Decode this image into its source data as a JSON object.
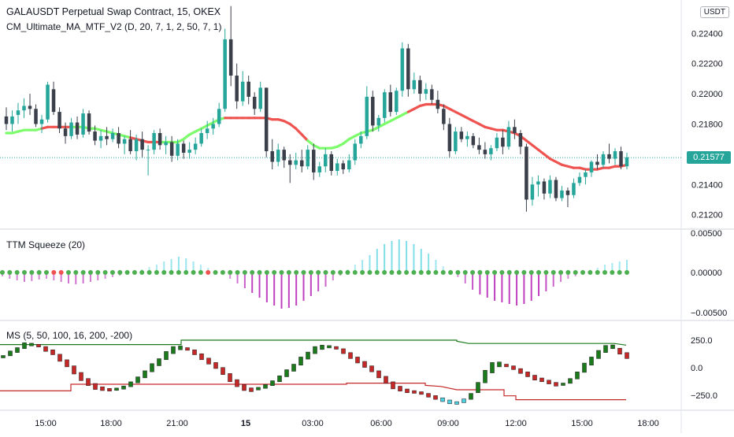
{
  "legend": {
    "title": "GALAUSDT Perpetual Swap Contract, 15, OKEX",
    "indicator": "CM_Ultimate_MA_MTF_V2 (D, 20, 7, 1, 2, 50, 7, 1)"
  },
  "unit": "USDT",
  "last_price": "0.21577",
  "colors": {
    "up": "#26a69a",
    "down": "#3a3f4a",
    "ma_up": "#7cfc6a",
    "ma_down": "#ef5350",
    "badge": "#26a69a",
    "squeeze_pos": "#80deea",
    "squeeze_neg": "#c040c0",
    "ms_green": "#1b7a1b",
    "ms_red": "#c62828"
  },
  "price_axis": [
    "0.22400",
    "0.22200",
    "0.22000",
    "0.21800",
    "0.21400",
    "0.21200"
  ],
  "time_axis": [
    "15:00",
    "18:00",
    "21:00",
    "15",
    "03:00",
    "06:00",
    "09:00",
    "12:00",
    "15:00",
    "18:00"
  ],
  "squeeze": {
    "label": "TTM Squeeze (20)",
    "axis": [
      "0.00500",
      "0.00000",
      "−0.00500"
    ]
  },
  "ms": {
    "label": "MS (5, 50, 100, 16, 200, -200)",
    "axis": [
      "250.0",
      "0.0",
      "−250.0"
    ]
  },
  "chart_data": {
    "type": "candlestick",
    "title": "GALAUSDT Perpetual Swap Contract, 15, OKEX",
    "ylim": [
      0.2111,
      0.2262
    ],
    "candles": [
      [
        0.2185,
        0.2191,
        0.2176,
        0.218
      ],
      [
        0.218,
        0.2189,
        0.2175,
        0.2185
      ],
      [
        0.2186,
        0.2194,
        0.218,
        0.2189
      ],
      [
        0.2189,
        0.2197,
        0.2184,
        0.2192
      ],
      [
        0.2192,
        0.22,
        0.2186,
        0.219
      ],
      [
        0.219,
        0.2193,
        0.2178,
        0.218
      ],
      [
        0.218,
        0.2186,
        0.2174,
        0.2183
      ],
      [
        0.2183,
        0.2208,
        0.2181,
        0.2206
      ],
      [
        0.2203,
        0.2208,
        0.2186,
        0.2188
      ],
      [
        0.2188,
        0.2191,
        0.2174,
        0.2177
      ],
      [
        0.2177,
        0.2181,
        0.2167,
        0.2172
      ],
      [
        0.2172,
        0.2184,
        0.217,
        0.2181
      ],
      [
        0.2181,
        0.2185,
        0.217,
        0.2173
      ],
      [
        0.2173,
        0.219,
        0.2171,
        0.2187
      ],
      [
        0.2187,
        0.2189,
        0.2173,
        0.2175
      ],
      [
        0.2175,
        0.2179,
        0.2166,
        0.2169
      ],
      [
        0.2169,
        0.2176,
        0.2164,
        0.2172
      ],
      [
        0.2172,
        0.2178,
        0.2166,
        0.217
      ],
      [
        0.217,
        0.2177,
        0.2168,
        0.2174
      ],
      [
        0.2174,
        0.2178,
        0.2164,
        0.2167
      ],
      [
        0.2167,
        0.2172,
        0.216,
        0.217
      ],
      [
        0.217,
        0.2176,
        0.216,
        0.2162
      ],
      [
        0.2162,
        0.2173,
        0.2156,
        0.217
      ],
      [
        0.217,
        0.2175,
        0.2158,
        0.2163
      ],
      [
        0.2163,
        0.2166,
        0.2146,
        0.2163
      ],
      [
        0.2163,
        0.2176,
        0.216,
        0.2174
      ],
      [
        0.2174,
        0.2177,
        0.2163,
        0.2166
      ],
      [
        0.2166,
        0.2172,
        0.216,
        0.2168
      ],
      [
        0.2168,
        0.2172,
        0.2155,
        0.2159
      ],
      [
        0.2159,
        0.217,
        0.2156,
        0.2167
      ],
      [
        0.2167,
        0.2169,
        0.2157,
        0.2161
      ],
      [
        0.2161,
        0.2168,
        0.2157,
        0.2163
      ],
      [
        0.2163,
        0.2171,
        0.216,
        0.2167
      ],
      [
        0.2167,
        0.2177,
        0.2165,
        0.2174
      ],
      [
        0.2174,
        0.2182,
        0.217,
        0.2177
      ],
      [
        0.2177,
        0.2184,
        0.2173,
        0.218
      ],
      [
        0.218,
        0.2194,
        0.2178,
        0.219
      ],
      [
        0.219,
        0.2243,
        0.2188,
        0.2236
      ],
      [
        0.2236,
        0.2258,
        0.2205,
        0.2212
      ],
      [
        0.2212,
        0.222,
        0.219,
        0.2195
      ],
      [
        0.2195,
        0.2215,
        0.2192,
        0.2208
      ],
      [
        0.2208,
        0.2212,
        0.2193,
        0.2198
      ],
      [
        0.2198,
        0.2201,
        0.2186,
        0.219
      ],
      [
        0.219,
        0.2208,
        0.2188,
        0.2204
      ],
      [
        0.2204,
        0.2204,
        0.2158,
        0.2162
      ],
      [
        0.2162,
        0.217,
        0.215,
        0.2155
      ],
      [
        0.2155,
        0.2167,
        0.2152,
        0.2163
      ],
      [
        0.2163,
        0.2165,
        0.2151,
        0.2156
      ],
      [
        0.2156,
        0.216,
        0.2141,
        0.2153
      ],
      [
        0.2153,
        0.2161,
        0.215,
        0.2156
      ],
      [
        0.2156,
        0.2163,
        0.2148,
        0.2152
      ],
      [
        0.2152,
        0.2166,
        0.215,
        0.2163
      ],
      [
        0.2163,
        0.2167,
        0.2143,
        0.2148
      ],
      [
        0.2148,
        0.2155,
        0.2145,
        0.2152
      ],
      [
        0.2152,
        0.2164,
        0.2148,
        0.216
      ],
      [
        0.216,
        0.2162,
        0.2146,
        0.2149
      ],
      [
        0.2149,
        0.2157,
        0.2146,
        0.2154
      ],
      [
        0.2154,
        0.2156,
        0.2147,
        0.215
      ],
      [
        0.215,
        0.216,
        0.2148,
        0.2156
      ],
      [
        0.2156,
        0.217,
        0.2153,
        0.2167
      ],
      [
        0.2167,
        0.2175,
        0.2164,
        0.2172
      ],
      [
        0.2172,
        0.2205,
        0.217,
        0.2198
      ],
      [
        0.2198,
        0.2202,
        0.2175,
        0.2179
      ],
      [
        0.2179,
        0.2186,
        0.2175,
        0.2184
      ],
      [
        0.2184,
        0.2203,
        0.2181,
        0.2201
      ],
      [
        0.2201,
        0.2206,
        0.2185,
        0.2188
      ],
      [
        0.2188,
        0.2204,
        0.2186,
        0.2202
      ],
      [
        0.2202,
        0.2234,
        0.2198,
        0.223
      ],
      [
        0.223,
        0.2233,
        0.2198,
        0.2203
      ],
      [
        0.2203,
        0.2214,
        0.22,
        0.2209
      ],
      [
        0.2209,
        0.2212,
        0.2195,
        0.22
      ],
      [
        0.22,
        0.2207,
        0.2196,
        0.2203
      ],
      [
        0.2203,
        0.2206,
        0.2193,
        0.2196
      ],
      [
        0.2196,
        0.2202,
        0.2187,
        0.219
      ],
      [
        0.219,
        0.2193,
        0.2176,
        0.218
      ],
      [
        0.218,
        0.2184,
        0.2158,
        0.2162
      ],
      [
        0.2162,
        0.2178,
        0.216,
        0.2175
      ],
      [
        0.2175,
        0.2178,
        0.2168,
        0.217
      ],
      [
        0.217,
        0.2175,
        0.2165,
        0.2172
      ],
      [
        0.2172,
        0.2174,
        0.2164,
        0.2166
      ],
      [
        0.2166,
        0.2171,
        0.216,
        0.2163
      ],
      [
        0.2163,
        0.2168,
        0.2157,
        0.216
      ],
      [
        0.216,
        0.2166,
        0.2156,
        0.2164
      ],
      [
        0.2164,
        0.2174,
        0.2162,
        0.2171
      ],
      [
        0.2171,
        0.2176,
        0.216,
        0.2165
      ],
      [
        0.2165,
        0.2182,
        0.2163,
        0.2178
      ],
      [
        0.2178,
        0.2183,
        0.217,
        0.2174
      ],
      [
        0.2174,
        0.2176,
        0.216,
        0.2165
      ],
      [
        0.2165,
        0.2167,
        0.2122,
        0.213
      ],
      [
        0.213,
        0.2145,
        0.2126,
        0.214
      ],
      [
        0.214,
        0.2146,
        0.2132,
        0.2142
      ],
      [
        0.2142,
        0.2144,
        0.213,
        0.2134
      ],
      [
        0.2134,
        0.2146,
        0.2131,
        0.2143
      ],
      [
        0.2143,
        0.2145,
        0.2129,
        0.2131
      ],
      [
        0.2131,
        0.2139,
        0.2129,
        0.2136
      ],
      [
        0.2136,
        0.2138,
        0.2125,
        0.2133
      ],
      [
        0.2133,
        0.2144,
        0.2131,
        0.2141
      ],
      [
        0.2141,
        0.2148,
        0.2139,
        0.2145
      ],
      [
        0.2145,
        0.215,
        0.214,
        0.2148
      ],
      [
        0.2148,
        0.2156,
        0.2145,
        0.2155
      ],
      [
        0.2155,
        0.216,
        0.215,
        0.2153
      ],
      [
        0.2153,
        0.2162,
        0.2151,
        0.216
      ],
      [
        0.216,
        0.2167,
        0.2154,
        0.2157
      ],
      [
        0.2157,
        0.2164,
        0.2153,
        0.2162
      ],
      [
        0.2162,
        0.2165,
        0.215,
        0.2152
      ],
      [
        0.2152,
        0.2161,
        0.215,
        0.2158
      ]
    ],
    "ma": [
      0.2174,
      0.2174,
      0.2175,
      0.2176,
      0.2176,
      0.2176,
      0.2177,
      0.2178,
      0.2178,
      0.2178,
      0.2178,
      0.2178,
      0.2178,
      0.2178,
      0.2177,
      0.2177,
      0.2176,
      0.2175,
      0.2174,
      0.2173,
      0.2172,
      0.2171,
      0.217,
      0.2169,
      0.2168,
      0.2168,
      0.2168,
      0.2168,
      0.2168,
      0.2168,
      0.217,
      0.2173,
      0.2175,
      0.2177,
      0.2179,
      0.2181,
      0.2183,
      0.2184,
      0.2184,
      0.2184,
      0.2184,
      0.2184,
      0.2184,
      0.2184,
      0.2184,
      0.2183,
      0.2183,
      0.2182,
      0.218,
      0.2177,
      0.2173,
      0.2169,
      0.2166,
      0.2164,
      0.2164,
      0.2164,
      0.2165,
      0.2167,
      0.217,
      0.2172,
      0.2174,
      0.2175,
      0.2176,
      0.2178,
      0.218,
      0.2182,
      0.2184,
      0.2186,
      0.2188,
      0.219,
      0.2192,
      0.2193,
      0.2193,
      0.2193,
      0.2192,
      0.219,
      0.2188,
      0.2186,
      0.2184,
      0.2182,
      0.218,
      0.2178,
      0.2177,
      0.2176,
      0.2176,
      0.2175,
      0.2174,
      0.2172,
      0.2169,
      0.2166,
      0.2163,
      0.216,
      0.2157,
      0.2155,
      0.2153,
      0.2152,
      0.2151,
      0.2151,
      0.215,
      0.215,
      0.215,
      0.2151,
      0.2151,
      0.2152,
      0.2152,
      0.2153
    ],
    "ma_trend": "11111100000111111111100000111111111110000000000000011111111111111111000000000000000000000000000000000000001111",
    "squeeze_values": [
      -0.0005,
      -0.0008,
      -0.001,
      -0.0012,
      -0.0011,
      -0.0009,
      -0.0008,
      -0.001,
      -0.0012,
      -0.0014,
      -0.0015,
      -0.0014,
      -0.0012,
      -0.001,
      -0.0008,
      -0.0006,
      -0.0004,
      -0.0002,
      0.0001,
      0.0004,
      0.0007,
      0.001,
      0.0014,
      0.0017,
      0.002,
      0.0018,
      0.0014,
      0.001,
      0.0006,
      0.0002,
      -0.0002,
      -0.0008,
      -0.0014,
      -0.002,
      -0.0026,
      -0.0032,
      -0.0038,
      -0.0042,
      -0.0046,
      -0.0045,
      -0.0042,
      -0.0036,
      -0.003,
      -0.0024,
      -0.0018,
      -0.001,
      -0.0004,
      0.0004,
      0.001,
      0.0016,
      0.0022,
      0.003,
      0.0036,
      0.004,
      0.0042,
      0.004,
      0.0036,
      0.003,
      0.0024,
      0.0016,
      0.0008,
      0.0002,
      -0.0006,
      -0.0014,
      -0.0022,
      -0.0028,
      -0.0032,
      -0.0036,
      -0.0038,
      -0.004,
      -0.0042,
      -0.004,
      -0.0036,
      -0.003,
      -0.0024,
      -0.0018,
      -0.0012,
      -0.0008,
      -0.0005,
      -0.0002,
      0.0003,
      0.0006,
      0.001,
      0.0012,
      0.0014,
      0.0016
    ],
    "squeeze_dots": "gggggggrrgggggggggggggggggggrggggggggggggggggggggggggggggggggggggggggggggggggggggggggg",
    "ms_values": [
      100,
      130,
      160,
      200,
      210,
      200,
      170,
      140,
      90,
      40,
      -20,
      -80,
      -130,
      -170,
      -190,
      -200,
      -195,
      -180,
      -150,
      -110,
      -60,
      0,
      50,
      110,
      160,
      180,
      170,
      140,
      100,
      60,
      20,
      -30,
      -90,
      -140,
      -180,
      -200,
      -190,
      -170,
      -140,
      -100,
      -50,
      0,
      60,
      110,
      160,
      185,
      190,
      180,
      150,
      110,
      70,
      30,
      -10,
      -60,
      -110,
      -160,
      -190,
      -210,
      -220,
      -230,
      -250,
      -270,
      -290,
      -310,
      -320,
      -300,
      -260,
      -180,
      -80,
      0,
      30,
      20,
      0,
      -30,
      -60,
      -90,
      -110,
      -130,
      -150,
      -150,
      -120,
      -70,
      0,
      60,
      120,
      170,
      190,
      150,
      110
    ],
    "ms_upper": [
      [
        0,
        210
      ],
      [
        230,
        210
      ],
      [
        230,
        250
      ],
      [
        580,
        250
      ],
      [
        580,
        240
      ],
      [
        595,
        220
      ],
      [
        780,
        220
      ],
      [
        795,
        205
      ]
    ],
    "ms_lower": [
      [
        0,
        -210
      ],
      [
        90,
        -210
      ],
      [
        90,
        -150
      ],
      [
        440,
        -150
      ],
      [
        440,
        -140
      ],
      [
        540,
        -140
      ],
      [
        540,
        -160
      ],
      [
        560,
        -170
      ],
      [
        580,
        -200
      ],
      [
        640,
        -200
      ],
      [
        640,
        -255
      ],
      [
        655,
        -255
      ],
      [
        655,
        -290
      ],
      [
        795,
        -290
      ]
    ]
  }
}
